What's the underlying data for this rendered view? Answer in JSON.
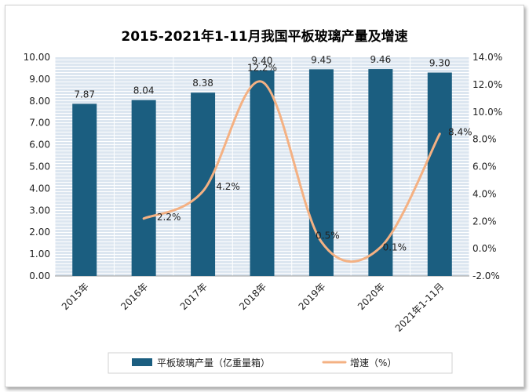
{
  "chart_data": {
    "type": "bar",
    "title": "2015-2021年1-11月我国平板玻璃产量及增速",
    "categories": [
      "2015年",
      "2016年",
      "2017年",
      "2018年",
      "2019年",
      "2020年",
      "2021年1-11月"
    ],
    "series": [
      {
        "name": "平板玻璃产量（亿重量箱）",
        "type": "bar",
        "axis": "left",
        "values": [
          7.87,
          8.04,
          8.38,
          9.4,
          9.45,
          9.46,
          9.3
        ],
        "labels": [
          "7.87",
          "8.04",
          "8.38",
          "9.40",
          "9.45",
          "9.46",
          "9.30"
        ]
      },
      {
        "name": "增速（%）",
        "type": "line",
        "axis": "right",
        "smooth": true,
        "values": [
          null,
          2.2,
          4.2,
          12.2,
          0.5,
          0.1,
          8.4
        ],
        "labels": [
          "",
          "2.2%",
          "4.2%",
          "12.2%",
          "0.5%",
          "0.1%",
          "8.4%"
        ]
      }
    ],
    "y_left": {
      "range": [
        0,
        10
      ],
      "ticks": [
        "0.00",
        "1.00",
        "2.00",
        "3.00",
        "4.00",
        "5.00",
        "6.00",
        "7.00",
        "8.00",
        "9.00",
        "10.00"
      ]
    },
    "y_right": {
      "range": [
        -2,
        14
      ],
      "ticks": [
        "-2.0%",
        "0.0%",
        "2.0%",
        "4.0%",
        "6.0%",
        "8.0%",
        "10.0%",
        "12.0%",
        "14.0%"
      ]
    },
    "grid": true,
    "legend": "bottom",
    "colors": {
      "bar": "#1b5e80",
      "line": "#f4b183",
      "plot_bg": "#dce6f0",
      "grid": "#ffffff"
    }
  }
}
